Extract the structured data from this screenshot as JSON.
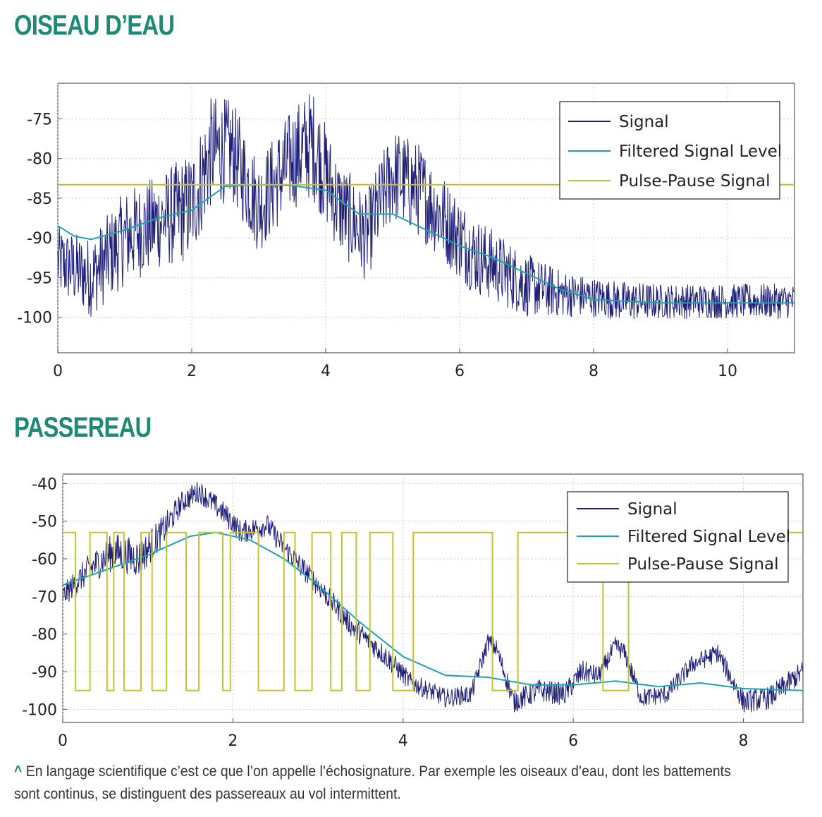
{
  "headings": {
    "top": "OISEAU D’EAU",
    "bottom": "PASSEREAU"
  },
  "caption": "En langage scientifique c’est ce que l’on appelle l’échosignature. Par exemple les oiseaux d’eau, dont les battements sont continus, se distinguent des passereaux au vol intermittent.",
  "colors": {
    "heading": "#1e8a74",
    "signal": "#1f1f7a",
    "filtered": "#1aa3b3",
    "pulse": "#c4c42a",
    "grid": "#cccccc"
  },
  "chart_data": [
    {
      "type": "line",
      "title": "OISEAU D’EAU",
      "xlim": [
        0,
        11
      ],
      "ylim": [
        -104.5,
        -70.5
      ],
      "xticks": [
        0,
        2,
        4,
        6,
        8,
        10
      ],
      "yticks": [
        -75,
        -80,
        -85,
        -90,
        -95,
        -100
      ],
      "grid": true,
      "legend_position": "top-right",
      "series": [
        {
          "name": "Signal",
          "color": "#1f1f7a",
          "x": [
            0,
            0.5,
            1,
            1.5,
            2,
            2.3,
            2.6,
            3,
            3.5,
            3.8,
            4.2,
            4.6,
            5,
            5.4,
            5.8,
            6.2,
            6.6,
            7,
            7.5,
            8,
            8.5,
            9,
            9.5,
            10,
            10.5,
            11
          ],
          "y": [
            -93,
            -95,
            -90,
            -88,
            -86,
            -79,
            -79,
            -86,
            -80,
            -78,
            -86,
            -90,
            -82,
            -84,
            -88,
            -92,
            -94,
            -96,
            -97,
            -97.5,
            -98,
            -98,
            -98,
            -98,
            -98,
            -98
          ],
          "noise": [
            4.5,
            5,
            6,
            6,
            7,
            7,
            6.5,
            6,
            6.5,
            7,
            6,
            5.5,
            6,
            6,
            5.5,
            5,
            4.5,
            4,
            3,
            2.5,
            2.5,
            2.2,
            2.2,
            2.2,
            2.2,
            2.2
          ]
        },
        {
          "name": "Filtered Signal Level",
          "color": "#1aa3b3",
          "x": [
            0,
            0.25,
            0.5,
            1,
            1.5,
            2,
            2.5,
            3,
            3.5,
            4,
            4.5,
            5,
            5.5,
            6,
            6.5,
            7,
            7.5,
            8,
            8.5,
            9,
            10,
            11
          ],
          "y": [
            -88.5,
            -89.8,
            -90.2,
            -89,
            -87.5,
            -86.5,
            -83.5,
            -83.3,
            -83.4,
            -84,
            -87,
            -87,
            -89,
            -91,
            -92.5,
            -94.5,
            -96.5,
            -97.8,
            -98,
            -98.2,
            -98.2,
            -98.2
          ]
        },
        {
          "name": "Pulse-Pause Signal",
          "color": "#c4c42a",
          "x": [
            0,
            11
          ],
          "y": [
            -83.3,
            -83.3
          ]
        }
      ]
    },
    {
      "type": "line",
      "title": "PASSEREAU",
      "xlim": [
        0,
        8.7
      ],
      "ylim": [
        -103.5,
        -37.5
      ],
      "xticks": [
        0,
        2,
        4,
        6,
        8
      ],
      "yticks": [
        -40,
        -50,
        -60,
        -70,
        -80,
        -90,
        -100
      ],
      "grid": true,
      "legend_position": "top-right",
      "series": [
        {
          "name": "Signal",
          "color": "#1f1f7a",
          "x": [
            0,
            0.3,
            0.6,
            0.9,
            1.2,
            1.4,
            1.6,
            1.9,
            2.1,
            2.4,
            2.6,
            3.0,
            3.4,
            3.8,
            4.1,
            4.5,
            4.8,
            5.0,
            5.1,
            5.3,
            5.6,
            5.9,
            6.1,
            6.3,
            6.5,
            6.6,
            6.8,
            7.1,
            7.4,
            7.7,
            8.0,
            8.3,
            8.7
          ],
          "y": [
            -70,
            -63,
            -58,
            -60,
            -52,
            -45,
            -42,
            -48,
            -53,
            -51,
            -57,
            -67,
            -78,
            -86,
            -93,
            -97,
            -96,
            -82,
            -84,
            -98,
            -95,
            -96,
            -90,
            -91,
            -83,
            -85,
            -97,
            -96,
            -88,
            -85,
            -98,
            -97,
            -90
          ],
          "noise": [
            3,
            4,
            5,
            5,
            4,
            3,
            3,
            3,
            3,
            3,
            3,
            3,
            3,
            3,
            2.5,
            2.5,
            2.5,
            2.5,
            2.5,
            3,
            3,
            3,
            3,
            2.5,
            2.5,
            2.5,
            2.5,
            2.5,
            2.5,
            2.5,
            3,
            3,
            3
          ]
        },
        {
          "name": "Filtered Signal Level",
          "color": "#1aa3b3",
          "x": [
            0,
            0.5,
            1,
            1.5,
            1.8,
            2.2,
            2.6,
            3,
            3.5,
            4,
            4.5,
            5,
            5.5,
            6,
            6.5,
            7,
            7.5,
            8,
            8.7
          ],
          "y": [
            -67,
            -63,
            -59,
            -54,
            -53,
            -55,
            -60,
            -67,
            -77,
            -86,
            -91,
            -91.5,
            -93.5,
            -93.5,
            -92.5,
            -94,
            -93,
            -94.5,
            -95
          ]
        },
        {
          "name": "Pulse-Pause Signal",
          "color": "#c4c42a",
          "high": -53,
          "low": -95,
          "x": [
            0,
            0.15,
            0.15,
            0.32,
            0.32,
            0.52,
            0.52,
            0.6,
            0.6,
            0.72,
            0.72,
            0.92,
            0.92,
            1.05,
            1.05,
            1.22,
            1.22,
            1.45,
            1.45,
            1.6,
            1.6,
            1.88,
            1.88,
            1.97,
            1.97,
            2.3,
            2.3,
            2.6,
            2.6,
            2.73,
            2.73,
            2.93,
            2.93,
            3.15,
            3.15,
            3.28,
            3.28,
            3.45,
            3.45,
            3.61,
            3.61,
            3.88,
            3.88,
            4.12,
            4.12,
            5.05,
            5.05,
            5.35,
            5.35,
            6.35,
            6.35,
            6.65,
            6.65,
            8.7
          ],
          "y": [
            -53,
            -53,
            -95,
            -95,
            -53,
            -53,
            -95,
            -95,
            -53,
            -53,
            -95,
            -95,
            -53,
            -53,
            -95,
            -95,
            -53,
            -53,
            -95,
            -95,
            -53,
            -53,
            -95,
            -95,
            -53,
            -53,
            -95,
            -95,
            -53,
            -53,
            -95,
            -95,
            -53,
            -53,
            -95,
            -95,
            -53,
            -53,
            -95,
            -95,
            -53,
            -53,
            -95,
            -95,
            -53,
            -53,
            -95,
            -95,
            -53,
            -53,
            -95,
            -95,
            -53,
            -53
          ]
        }
      ]
    }
  ]
}
